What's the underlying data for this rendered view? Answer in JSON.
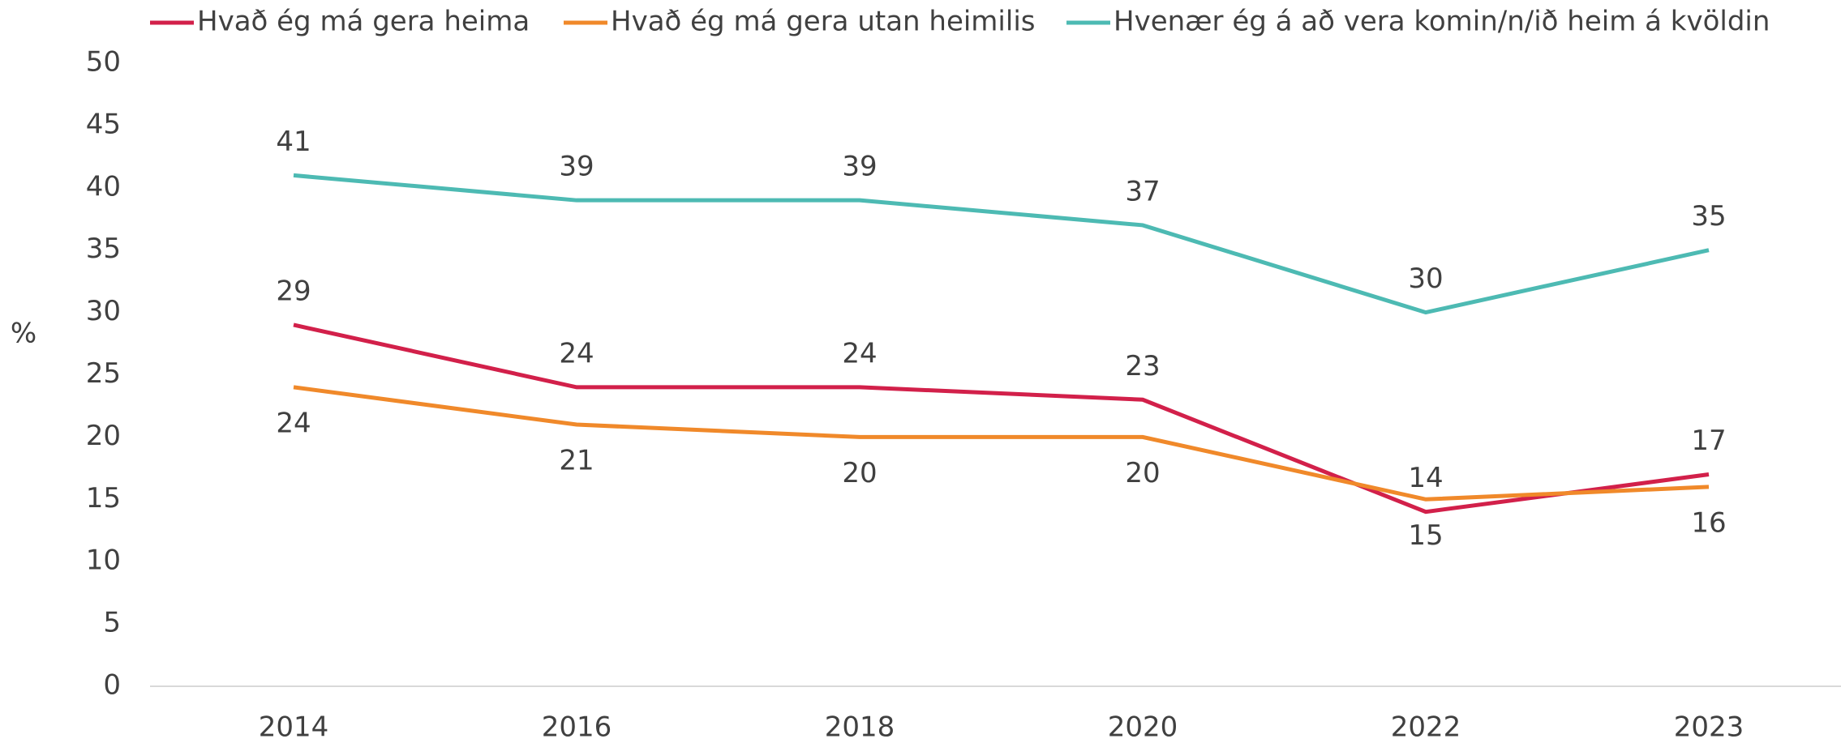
{
  "chart_data": {
    "type": "line",
    "y_label": "%",
    "categories": [
      "2014",
      "2016",
      "2018",
      "2020",
      "2022",
      "2023"
    ],
    "series": [
      {
        "name": "Hvað ég má gera heima",
        "color": "#d2204a",
        "values": [
          29,
          24,
          24,
          23,
          14,
          17
        ]
      },
      {
        "name": "Hvað ég má gera utan heimilis",
        "color": "#f0892a",
        "values": [
          24,
          21,
          20,
          20,
          15,
          16
        ]
      },
      {
        "name": "Hvenær ég á að vera komin/n/ið heim á kvöldin",
        "color": "#4dbab3",
        "values": [
          41,
          39,
          39,
          37,
          30,
          35
        ]
      }
    ],
    "ylim": [
      0,
      50
    ],
    "yticks": [
      0,
      5,
      10,
      15,
      20,
      25,
      30,
      35,
      40,
      45,
      50
    ],
    "grid": false
  }
}
